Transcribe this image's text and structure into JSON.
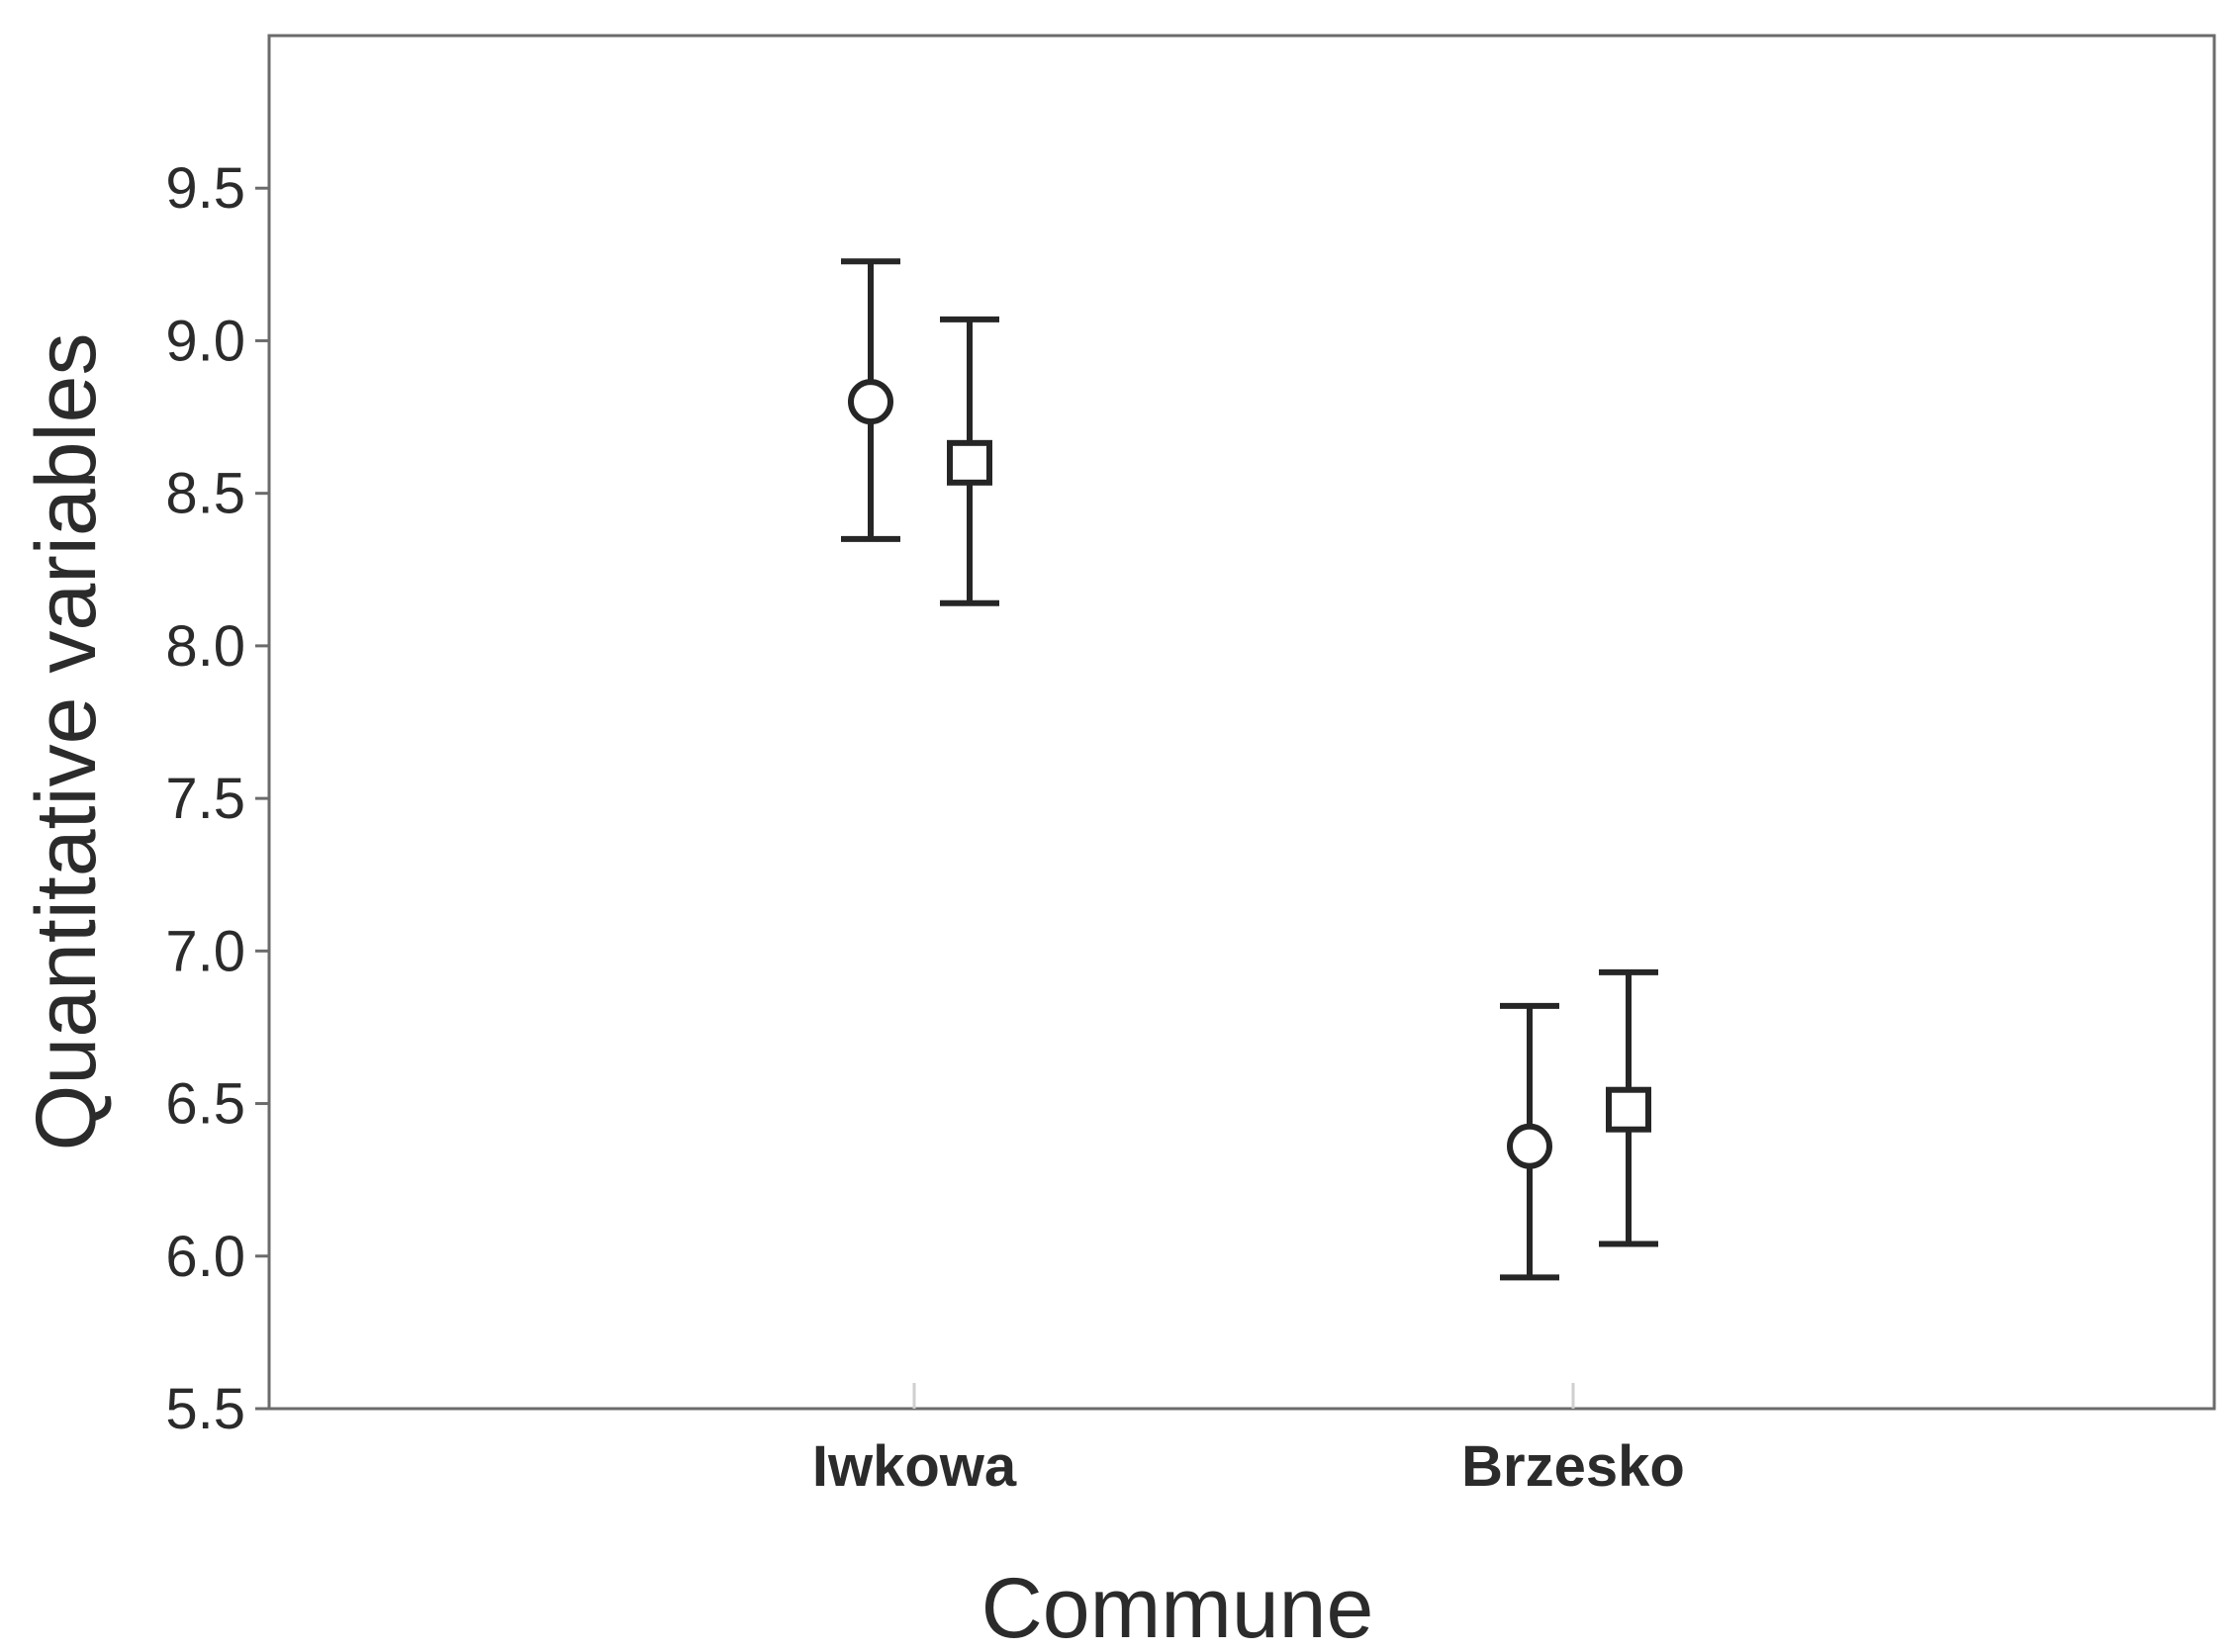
{
  "chart_data": {
    "type": "scatter",
    "title": "",
    "xlabel": "Commune",
    "ylabel": "Quantitative variables",
    "ylim": [
      5.5,
      10.0
    ],
    "yticks": [
      "5.5",
      "6.0",
      "6.5",
      "7.0",
      "7.5",
      "8.0",
      "8.5",
      "9.0",
      "9.5"
    ],
    "categories": [
      "Iwkowa",
      "Brzesko"
    ],
    "grid": false,
    "legend": "none",
    "series": [
      {
        "marker": "circle",
        "values": [
          8.8,
          6.36
        ],
        "upper": [
          9.26,
          6.82
        ],
        "lower": [
          8.35,
          5.93
        ]
      },
      {
        "marker": "square",
        "values": [
          8.6,
          6.48
        ],
        "upper": [
          9.07,
          6.93
        ],
        "lower": [
          8.14,
          6.04
        ]
      }
    ],
    "colors": {
      "marks": "#262626",
      "frame": "#6b6b6b"
    }
  }
}
